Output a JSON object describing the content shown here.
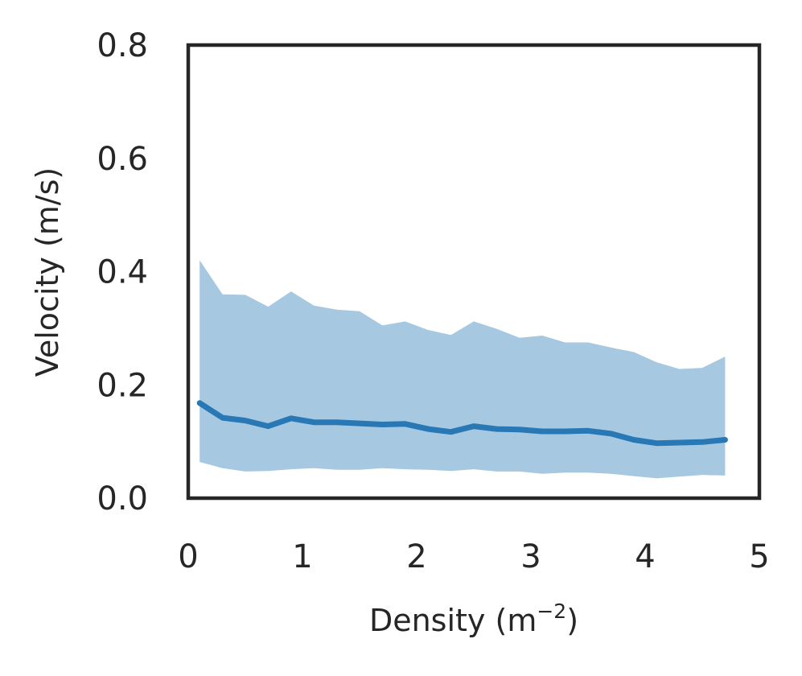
{
  "chart_data": {
    "type": "line",
    "title": "",
    "xlabel": "Density (m",
    "xlabel_sup": "−2",
    "xlabel_close": ")",
    "ylabel": "Velocity (m/s)",
    "xlim": [
      0,
      5
    ],
    "ylim": [
      0,
      0.8
    ],
    "xticks": [
      0,
      1,
      2,
      3,
      4,
      5
    ],
    "xtick_labels": [
      "0",
      "1",
      "2",
      "3",
      "4",
      "5"
    ],
    "yticks": [
      0.0,
      0.2,
      0.4,
      0.6,
      0.8
    ],
    "ytick_labels": [
      "0.0",
      "0.2",
      "0.4",
      "0.6",
      "0.8"
    ],
    "grid": false,
    "line_color": "#2878b5",
    "band_color": "#a6c8e1",
    "x": [
      0.1,
      0.3,
      0.5,
      0.7,
      0.9,
      1.1,
      1.3,
      1.5,
      1.7,
      1.9,
      2.1,
      2.3,
      2.5,
      2.7,
      2.9,
      3.1,
      3.3,
      3.5,
      3.7,
      3.9,
      4.1,
      4.3,
      4.5,
      4.7
    ],
    "series": [
      {
        "values": [
          0.168,
          0.142,
          0.137,
          0.127,
          0.141,
          0.134,
          0.134,
          0.132,
          0.13,
          0.131,
          0.122,
          0.117,
          0.127,
          0.122,
          0.121,
          0.118,
          0.118,
          0.119,
          0.114,
          0.103,
          0.097,
          0.098,
          0.099,
          0.103
        ],
        "upper": [
          0.42,
          0.36,
          0.359,
          0.338,
          0.365,
          0.34,
          0.333,
          0.33,
          0.305,
          0.312,
          0.297,
          0.288,
          0.312,
          0.299,
          0.283,
          0.287,
          0.275,
          0.275,
          0.266,
          0.258,
          0.24,
          0.228,
          0.23,
          0.25
        ],
        "lower": [
          0.064,
          0.053,
          0.047,
          0.048,
          0.051,
          0.053,
          0.05,
          0.05,
          0.053,
          0.051,
          0.05,
          0.048,
          0.051,
          0.047,
          0.047,
          0.043,
          0.045,
          0.045,
          0.043,
          0.039,
          0.035,
          0.038,
          0.041,
          0.04
        ]
      }
    ]
  }
}
